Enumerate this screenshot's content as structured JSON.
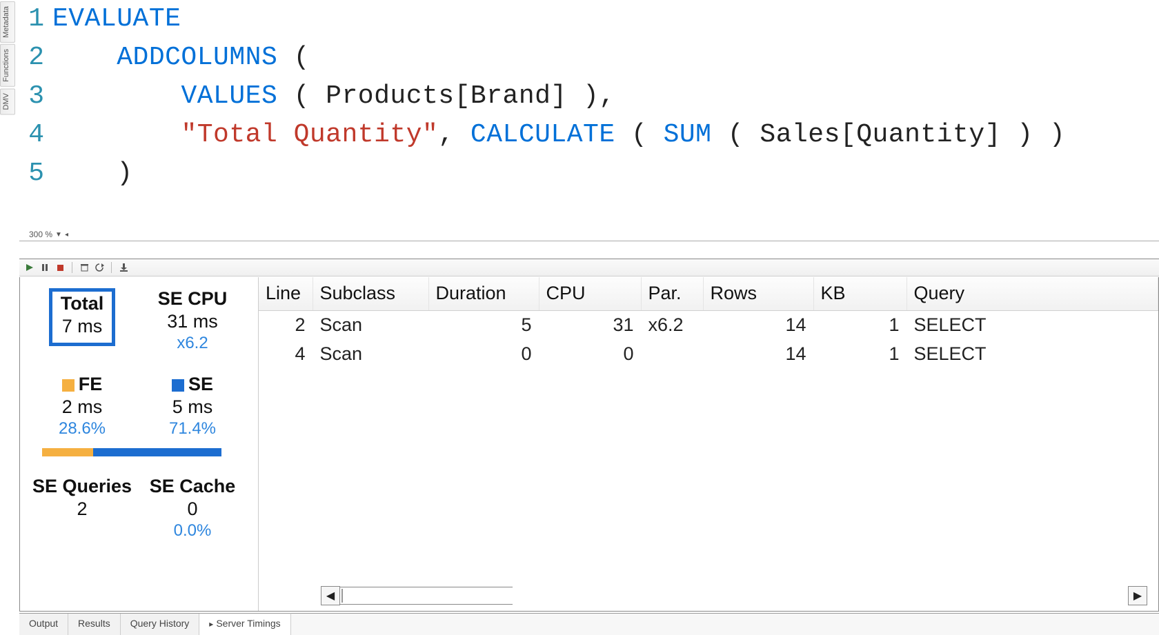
{
  "colors": {
    "keyword": "#0070d8",
    "string": "#c0392b",
    "lineno": "#2b91af",
    "accent_blue": "#1c6dd0",
    "fe": "#f5b041",
    "se": "#1c6dd0"
  },
  "left_tabs": [
    "Metadata",
    "Functions",
    "DMV"
  ],
  "editor": {
    "zoom": "300 %",
    "lines": [
      {
        "n": "1",
        "tokens": [
          {
            "c": "kw",
            "t": "EVALUATE"
          }
        ]
      },
      {
        "n": "2",
        "tokens": [
          {
            "c": "plain",
            "t": "    "
          },
          {
            "c": "kw",
            "t": "ADDCOLUMNS"
          },
          {
            "c": "plain",
            "t": " ("
          }
        ]
      },
      {
        "n": "3",
        "tokens": [
          {
            "c": "plain",
            "t": "        "
          },
          {
            "c": "kw",
            "t": "VALUES"
          },
          {
            "c": "plain",
            "t": " ( Products[Brand] ),"
          }
        ]
      },
      {
        "n": "4",
        "tokens": [
          {
            "c": "plain",
            "t": "        "
          },
          {
            "c": "str",
            "t": "\"Total Quantity\""
          },
          {
            "c": "plain",
            "t": ", "
          },
          {
            "c": "kw",
            "t": "CALCULATE"
          },
          {
            "c": "plain",
            "t": " ( "
          },
          {
            "c": "kw",
            "t": "SUM"
          },
          {
            "c": "plain",
            "t": " ( Sales[Quantity] ) )"
          }
        ]
      },
      {
        "n": "5",
        "tokens": [
          {
            "c": "plain",
            "t": "    )"
          }
        ]
      }
    ]
  },
  "stats": {
    "total": {
      "label": "Total",
      "value": "7 ms"
    },
    "se_cpu": {
      "label": "SE CPU",
      "value": "31 ms",
      "sub": "x6.2"
    },
    "fe": {
      "label": "FE",
      "value": "2 ms",
      "sub": "28.6%"
    },
    "se": {
      "label": "SE",
      "value": "5 ms",
      "sub": "71.4%"
    },
    "bar_fe_pct": 28.6,
    "se_queries": {
      "label": "SE Queries",
      "value": "2"
    },
    "se_cache": {
      "label": "SE Cache",
      "value": "0",
      "sub": "0.0%"
    }
  },
  "grid": {
    "columns": [
      "Line",
      "Subclass",
      "Duration",
      "CPU",
      "Par.",
      "Rows",
      "KB",
      "Query"
    ],
    "rows": [
      {
        "line": "2",
        "subclass": "Scan",
        "duration": "5",
        "cpu": "31",
        "par": "x6.2",
        "rows": "14",
        "kb": "1",
        "query": "SELECT"
      },
      {
        "line": "4",
        "subclass": "Scan",
        "duration": "0",
        "cpu": "0",
        "par": "",
        "rows": "14",
        "kb": "1",
        "query": "SELECT"
      }
    ]
  },
  "bottom_tabs": {
    "items": [
      "Output",
      "Results",
      "Query History",
      "Server Timings"
    ],
    "active": "Server Timings"
  },
  "toolbar_icons": [
    "play",
    "pause",
    "stop",
    "trash",
    "clear-cache",
    "sep",
    "download"
  ]
}
